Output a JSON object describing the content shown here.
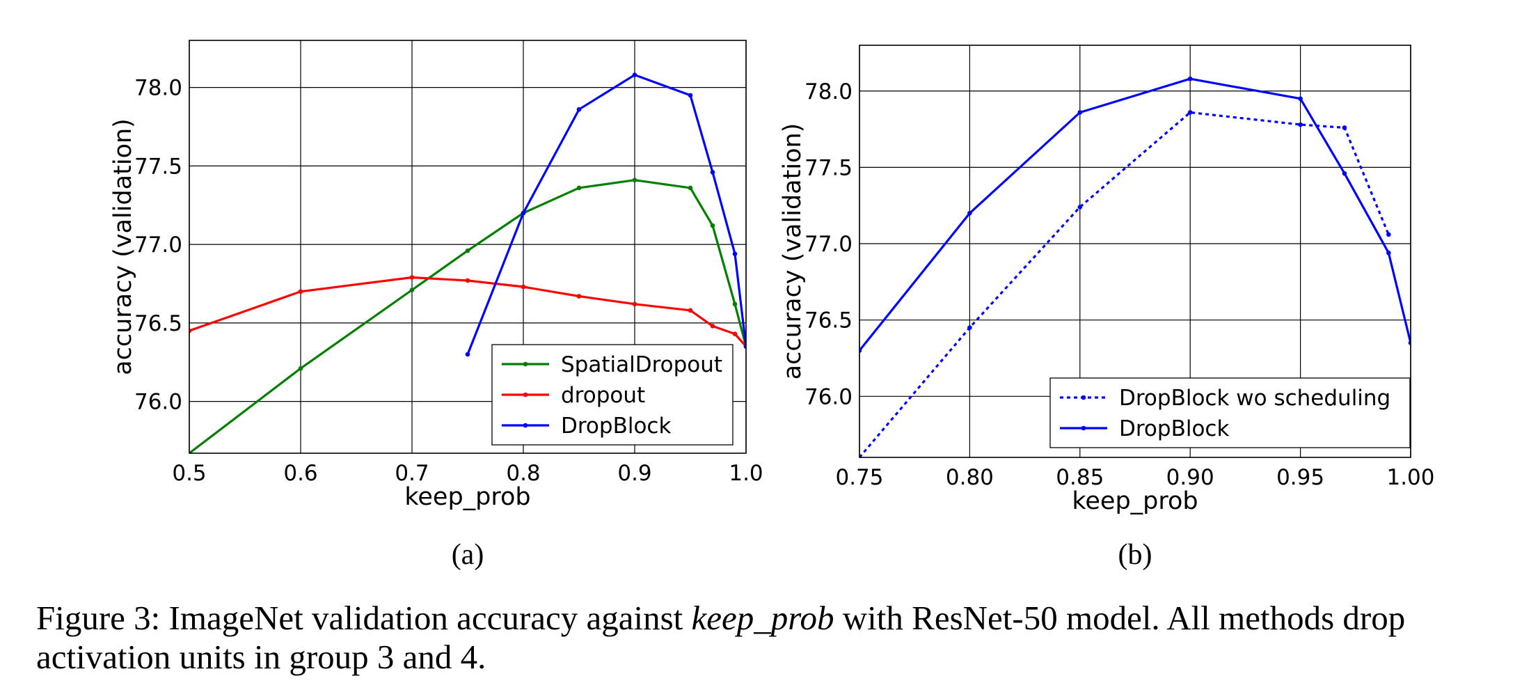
{
  "chart_data": [
    {
      "type": "line",
      "panel_label": "(a)",
      "xlabel": "keep_prob",
      "ylabel": "accuracy (validation)",
      "xlim": [
        0.5,
        1.0
      ],
      "ylim": [
        75.67,
        78.3
      ],
      "xticks": [
        0.5,
        0.6,
        0.7,
        0.8,
        0.9,
        1.0
      ],
      "xtick_labels": [
        "0.5",
        "0.6",
        "0.7",
        "0.8",
        "0.9",
        "1.0"
      ],
      "yticks": [
        76.0,
        76.5,
        77.0,
        77.5,
        78.0
      ],
      "ytick_labels": [
        "76.0",
        "76.5",
        "77.0",
        "77.5",
        "78.0"
      ],
      "grid": true,
      "legend_loc": "bottom-right",
      "series": [
        {
          "name": "SpatialDropout",
          "color": "#007f00",
          "style": "solid",
          "x": [
            0.5,
            0.6,
            0.7,
            0.75,
            0.8,
            0.85,
            0.9,
            0.95,
            0.97,
            0.99,
            1.0
          ],
          "y": [
            75.67,
            76.21,
            76.71,
            76.96,
            77.2,
            77.36,
            77.41,
            77.36,
            77.12,
            76.62,
            76.35
          ]
        },
        {
          "name": "dropout",
          "color": "#ff0000",
          "style": "solid",
          "x": [
            0.5,
            0.6,
            0.7,
            0.75,
            0.8,
            0.85,
            0.9,
            0.95,
            0.97,
            0.99,
            1.0
          ],
          "y": [
            76.45,
            76.7,
            76.79,
            76.77,
            76.73,
            76.67,
            76.62,
            76.58,
            76.48,
            76.43,
            76.35
          ]
        },
        {
          "name": "DropBlock",
          "color": "#0000ff",
          "style": "solid",
          "x": [
            0.75,
            0.8,
            0.85,
            0.9,
            0.95,
            0.97,
            0.99,
            1.0
          ],
          "y": [
            76.3,
            77.2,
            77.86,
            78.08,
            77.95,
            77.46,
            76.94,
            76.35
          ]
        }
      ]
    },
    {
      "type": "line",
      "panel_label": "(b)",
      "xlabel": "keep_prob",
      "ylabel": "accuracy (validation)",
      "xlim": [
        0.75,
        1.0
      ],
      "ylim": [
        75.6,
        78.3
      ],
      "xticks": [
        0.75,
        0.8,
        0.85,
        0.9,
        0.95,
        1.0
      ],
      "xtick_labels": [
        "0.75",
        "0.80",
        "0.85",
        "0.90",
        "0.95",
        "1.00"
      ],
      "yticks": [
        76.0,
        76.5,
        77.0,
        77.5,
        78.0
      ],
      "ytick_labels": [
        "76.0",
        "76.5",
        "77.0",
        "77.5",
        "78.0"
      ],
      "grid": true,
      "legend_loc": "bottom-right",
      "series": [
        {
          "name": "DropBlock wo scheduling",
          "color": "#0000ff",
          "style": "dotted",
          "x": [
            0.75,
            0.8,
            0.85,
            0.9,
            0.95,
            0.97,
            0.99
          ],
          "y": [
            75.6,
            76.45,
            77.24,
            77.86,
            77.78,
            77.76,
            77.06
          ]
        },
        {
          "name": "DropBlock",
          "color": "#0000ff",
          "style": "solid",
          "x": [
            0.75,
            0.8,
            0.85,
            0.9,
            0.95,
            0.97,
            0.99,
            1.0
          ],
          "y": [
            76.3,
            77.2,
            77.86,
            78.08,
            77.95,
            77.46,
            76.94,
            76.35
          ]
        }
      ]
    }
  ],
  "caption": {
    "prefix": "Figure 3: ImageNet validation accuracy against ",
    "italic": "keep_prob",
    "suffix": " with ResNet-50 model. All methods drop activation units in group 3 and 4."
  }
}
